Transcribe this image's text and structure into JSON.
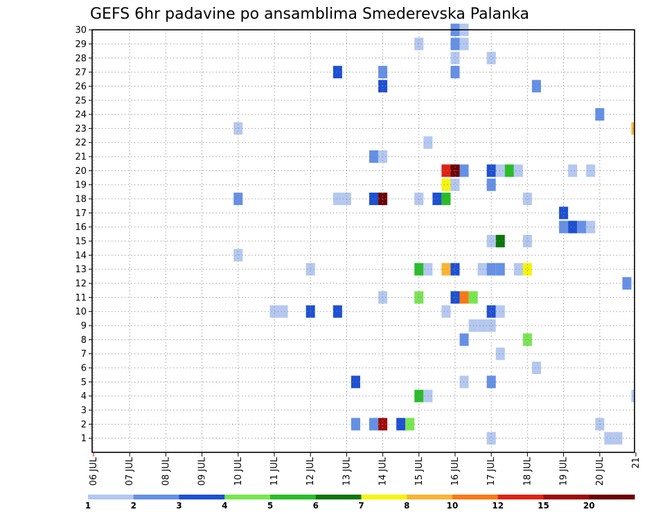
{
  "chart_data": {
    "type": "heatmap",
    "title": "GEFS 6hr padavine po ansamblima Smederevska Palanka",
    "xlabel": "",
    "ylabel": "",
    "x_tick_labels": [
      "06 JUL",
      "07 JUL",
      "08 JUL",
      "09 JUL",
      "10 JUL",
      "11 JUL",
      "12 JUL",
      "13 JUL",
      "14 JUL",
      "15 JUL",
      "16 JUL",
      "17 JUL",
      "18 JUL",
      "19 JUL",
      "20 JUL",
      "21"
    ],
    "y_tick_labels": [
      "1",
      "2",
      "3",
      "4",
      "5",
      "6",
      "7",
      "8",
      "9",
      "10",
      "11",
      "12",
      "13",
      "14",
      "15",
      "16",
      "17",
      "18",
      "19",
      "20",
      "21",
      "22",
      "23",
      "24",
      "25",
      "26",
      "27",
      "28",
      "29",
      "30"
    ],
    "x_range_days": [
      0,
      15
    ],
    "y_range_members": [
      0,
      30
    ],
    "grid": true,
    "color_scale": {
      "thresholds": [
        "1",
        "2",
        "3",
        "4",
        "5",
        "6",
        "7",
        "8",
        "10",
        "12",
        "15",
        "20"
      ],
      "colors": [
        "#b4c8f0",
        "#6490e6",
        "#1e50d2",
        "#78e650",
        "#28be28",
        "#0a780a",
        "#f5f50a",
        "#fab432",
        "#fa7814",
        "#dc2314",
        "#a00a0a",
        "#6e0000"
      ]
    },
    "cells": [
      {
        "d": 11.0,
        "m": 1,
        "c": 1
      },
      {
        "d": 14.25,
        "m": 1,
        "c": 1
      },
      {
        "d": 14.5,
        "m": 1,
        "c": 1
      },
      {
        "d": 7.25,
        "m": 2,
        "c": 2
      },
      {
        "d": 7.75,
        "m": 2,
        "c": 2
      },
      {
        "d": 8.0,
        "m": 2,
        "c": 11
      },
      {
        "d": 8.5,
        "m": 2,
        "c": 3
      },
      {
        "d": 8.75,
        "m": 2,
        "c": 4
      },
      {
        "d": 14.0,
        "m": 2,
        "c": 1
      },
      {
        "d": 9.0,
        "m": 4,
        "c": 5
      },
      {
        "d": 9.25,
        "m": 4,
        "c": 1
      },
      {
        "d": 15.0,
        "m": 4,
        "c": 1
      },
      {
        "d": 7.25,
        "m": 5,
        "c": 3
      },
      {
        "d": 10.25,
        "m": 5,
        "c": 1
      },
      {
        "d": 11.0,
        "m": 5,
        "c": 2
      },
      {
        "d": 12.25,
        "m": 6,
        "c": 1
      },
      {
        "d": 11.25,
        "m": 7,
        "c": 1
      },
      {
        "d": 10.25,
        "m": 8,
        "c": 2
      },
      {
        "d": 12.0,
        "m": 8,
        "c": 4
      },
      {
        "d": 10.5,
        "m": 9,
        "c": 1
      },
      {
        "d": 10.75,
        "m": 9,
        "c": 1
      },
      {
        "d": 11.0,
        "m": 9,
        "c": 1
      },
      {
        "d": 5.0,
        "m": 10,
        "c": 1
      },
      {
        "d": 5.25,
        "m": 10,
        "c": 1
      },
      {
        "d": 6.0,
        "m": 10,
        "c": 3
      },
      {
        "d": 6.75,
        "m": 10,
        "c": 3
      },
      {
        "d": 9.75,
        "m": 10,
        "c": 1
      },
      {
        "d": 11.0,
        "m": 10,
        "c": 3
      },
      {
        "d": 11.25,
        "m": 10,
        "c": 1
      },
      {
        "d": 8.0,
        "m": 11,
        "c": 1
      },
      {
        "d": 9.0,
        "m": 11,
        "c": 4
      },
      {
        "d": 10.0,
        "m": 11,
        "c": 3
      },
      {
        "d": 10.25,
        "m": 11,
        "c": 9
      },
      {
        "d": 10.5,
        "m": 11,
        "c": 4
      },
      {
        "d": 14.75,
        "m": 12,
        "c": 2
      },
      {
        "d": 6.0,
        "m": 13,
        "c": 1
      },
      {
        "d": 9.0,
        "m": 13,
        "c": 5
      },
      {
        "d": 9.25,
        "m": 13,
        "c": 1
      },
      {
        "d": 9.75,
        "m": 13,
        "c": 8
      },
      {
        "d": 10.0,
        "m": 13,
        "c": 3
      },
      {
        "d": 10.75,
        "m": 13,
        "c": 1
      },
      {
        "d": 11.0,
        "m": 13,
        "c": 2
      },
      {
        "d": 11.25,
        "m": 13,
        "c": 2
      },
      {
        "d": 11.75,
        "m": 13,
        "c": 1
      },
      {
        "d": 12.0,
        "m": 13,
        "c": 7
      },
      {
        "d": 4.0,
        "m": 14,
        "c": 1
      },
      {
        "d": 11.0,
        "m": 15,
        "c": 1
      },
      {
        "d": 11.25,
        "m": 15,
        "c": 6
      },
      {
        "d": 12.0,
        "m": 15,
        "c": 1
      },
      {
        "d": 13.0,
        "m": 16,
        "c": 2
      },
      {
        "d": 13.25,
        "m": 16,
        "c": 3
      },
      {
        "d": 13.5,
        "m": 16,
        "c": 2
      },
      {
        "d": 13.75,
        "m": 16,
        "c": 1
      },
      {
        "d": 13.0,
        "m": 17,
        "c": 3
      },
      {
        "d": 4.0,
        "m": 18,
        "c": 2
      },
      {
        "d": 6.75,
        "m": 18,
        "c": 1
      },
      {
        "d": 7.0,
        "m": 18,
        "c": 1
      },
      {
        "d": 7.75,
        "m": 18,
        "c": 3
      },
      {
        "d": 8.0,
        "m": 18,
        "c": 12
      },
      {
        "d": 9.0,
        "m": 18,
        "c": 1
      },
      {
        "d": 9.5,
        "m": 18,
        "c": 3
      },
      {
        "d": 9.75,
        "m": 18,
        "c": 5
      },
      {
        "d": 12.0,
        "m": 18,
        "c": 1
      },
      {
        "d": 9.75,
        "m": 19,
        "c": 7
      },
      {
        "d": 10.0,
        "m": 19,
        "c": 1
      },
      {
        "d": 11.0,
        "m": 19,
        "c": 2
      },
      {
        "d": 9.75,
        "m": 20,
        "c": 10
      },
      {
        "d": 10.0,
        "m": 20,
        "c": 12
      },
      {
        "d": 10.25,
        "m": 20,
        "c": 2
      },
      {
        "d": 11.0,
        "m": 20,
        "c": 3
      },
      {
        "d": 11.25,
        "m": 20,
        "c": 1
      },
      {
        "d": 11.5,
        "m": 20,
        "c": 5
      },
      {
        "d": 11.75,
        "m": 20,
        "c": 1
      },
      {
        "d": 13.25,
        "m": 20,
        "c": 1
      },
      {
        "d": 13.75,
        "m": 20,
        "c": 1
      },
      {
        "d": 7.75,
        "m": 21,
        "c": 2
      },
      {
        "d": 8.0,
        "m": 21,
        "c": 1
      },
      {
        "d": 9.25,
        "m": 22,
        "c": 1
      },
      {
        "d": 4.0,
        "m": 23,
        "c": 1
      },
      {
        "d": 15.0,
        "m": 23,
        "c": 8
      },
      {
        "d": 14.0,
        "m": 24,
        "c": 2
      },
      {
        "d": 8.0,
        "m": 26,
        "c": 3
      },
      {
        "d": 12.25,
        "m": 26,
        "c": 2
      },
      {
        "d": 6.75,
        "m": 27,
        "c": 3
      },
      {
        "d": 8.0,
        "m": 27,
        "c": 2
      },
      {
        "d": 10.0,
        "m": 27,
        "c": 2
      },
      {
        "d": 10.0,
        "m": 28,
        "c": 1
      },
      {
        "d": 11.0,
        "m": 28,
        "c": 1
      },
      {
        "d": 9.0,
        "m": 29,
        "c": 1
      },
      {
        "d": 10.0,
        "m": 29,
        "c": 2
      },
      {
        "d": 10.25,
        "m": 29,
        "c": 1
      },
      {
        "d": 10.0,
        "m": 30,
        "c": 2
      },
      {
        "d": 10.25,
        "m": 30,
        "c": 1
      }
    ]
  }
}
